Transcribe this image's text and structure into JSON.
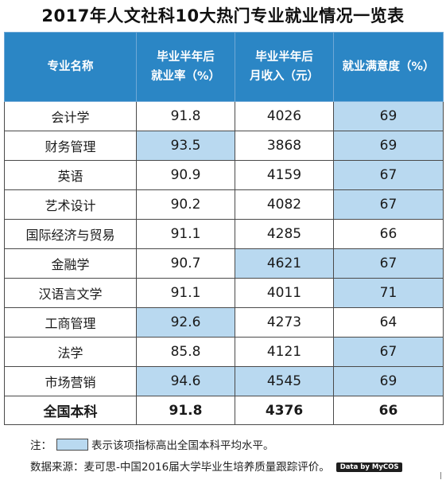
{
  "title": "2017年人文社科10大热门专业就业情况一览表",
  "table": {
    "headers": [
      {
        "line1": "专业名称",
        "line2": ""
      },
      {
        "line1": "毕业半年后",
        "line2": "就业率（%）"
      },
      {
        "line1": "毕业半年后",
        "line2": "月收入（元）"
      },
      {
        "line1": "就业满意度（%）",
        "line2": ""
      }
    ],
    "rows": [
      {
        "major": "会计学",
        "employment_rate": "91.8",
        "monthly_income": "4026",
        "satisfaction": "69",
        "highlight": [
          false,
          false,
          true
        ]
      },
      {
        "major": "财务管理",
        "employment_rate": "93.5",
        "monthly_income": "3868",
        "satisfaction": "69",
        "highlight": [
          true,
          false,
          true
        ]
      },
      {
        "major": "英语",
        "employment_rate": "90.9",
        "monthly_income": "4159",
        "satisfaction": "67",
        "highlight": [
          false,
          false,
          true
        ]
      },
      {
        "major": "艺术设计",
        "employment_rate": "90.2",
        "monthly_income": "4082",
        "satisfaction": "67",
        "highlight": [
          false,
          false,
          true
        ]
      },
      {
        "major": "国际经济与贸易",
        "employment_rate": "91.1",
        "monthly_income": "4285",
        "satisfaction": "66",
        "highlight": [
          false,
          false,
          false
        ]
      },
      {
        "major": "金融学",
        "employment_rate": "90.7",
        "monthly_income": "4621",
        "satisfaction": "67",
        "highlight": [
          false,
          true,
          true
        ]
      },
      {
        "major": "汉语言文学",
        "employment_rate": "91.1",
        "monthly_income": "4011",
        "satisfaction": "71",
        "highlight": [
          false,
          false,
          true
        ]
      },
      {
        "major": "工商管理",
        "employment_rate": "92.6",
        "monthly_income": "4273",
        "satisfaction": "64",
        "highlight": [
          true,
          false,
          false
        ]
      },
      {
        "major": "法学",
        "employment_rate": "85.8",
        "monthly_income": "4121",
        "satisfaction": "67",
        "highlight": [
          false,
          false,
          true
        ]
      },
      {
        "major": "市场营销",
        "employment_rate": "94.6",
        "monthly_income": "4545",
        "satisfaction": "69",
        "highlight": [
          true,
          true,
          true
        ]
      }
    ],
    "total": {
      "major": "全国本科",
      "employment_rate": "91.8",
      "monthly_income": "4376",
      "satisfaction": "66"
    }
  },
  "note": {
    "label": "注：",
    "text": "表示该项指标高出全国本科平均水平。"
  },
  "source": {
    "text": "数据来源：麦可思-中国2016届大学毕业生培养质量跟踪评价。",
    "badge": "Data by MyCOS"
  },
  "colors": {
    "header_bg": "#2b86c5",
    "highlight_bg": "#b9d9f0",
    "border": "#4a4a4a"
  }
}
